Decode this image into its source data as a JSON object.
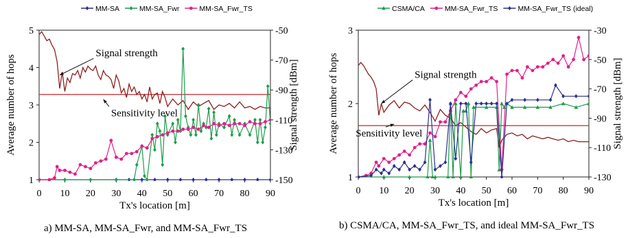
{
  "chart_data": [
    {
      "type": "line",
      "caption": "a) MM-SA, MM-SA_Fwr, and MM-SA_Fwr_TS",
      "xlabel": "Tx's location [m]",
      "ylabel": "Average number of hops",
      "y2label": "Signal strength [dBm]",
      "xlim": [
        0,
        90
      ],
      "ylim": [
        1,
        5
      ],
      "y2lim": [
        -150,
        -50
      ],
      "x_ticks": [
        "0",
        "10",
        "20",
        "30",
        "40",
        "50",
        "60",
        "70",
        "80",
        "90"
      ],
      "y_ticks": [
        "1",
        "2",
        "3",
        "4",
        "5"
      ],
      "y2_ticks": [
        "-50",
        "-70",
        "-90",
        "-110",
        "-130",
        "-150"
      ],
      "series": [
        {
          "name": "MM-SA",
          "axis": "left",
          "color": "#2b2f8f",
          "marker": "diamond",
          "x": [
            0,
            30,
            35,
            40,
            45,
            50,
            55,
            60,
            65,
            70,
            75,
            80,
            85,
            90
          ],
          "y": [
            1,
            1,
            1,
            1,
            1,
            1,
            1,
            1,
            1,
            1,
            1,
            1,
            1,
            1
          ]
        },
        {
          "name": "MM-SA_Fwr",
          "axis": "left",
          "color": "#1f9c4a",
          "marker": "diamond",
          "x": [
            0,
            10,
            20,
            30,
            37,
            38,
            40,
            41,
            42,
            44,
            45,
            46,
            47,
            48,
            49,
            50,
            52,
            53,
            54,
            55,
            56,
            57,
            58,
            59,
            60,
            61,
            62,
            63,
            64,
            65,
            66,
            67,
            68,
            69,
            70,
            72,
            74,
            75,
            76,
            78,
            80,
            82,
            84,
            85,
            86,
            87,
            88,
            89,
            90
          ],
          "y": [
            1,
            1,
            1,
            1,
            1,
            1.4,
            1.9,
            1.1,
            1,
            2.2,
            1.8,
            2.5,
            2.3,
            1.4,
            2.7,
            2.2,
            2.5,
            2.0,
            2.6,
            2.3,
            4.5,
            2.7,
            2.4,
            2.2,
            2.6,
            2.2,
            3.0,
            2.3,
            2.5,
            2.4,
            2.9,
            2.1,
            2.8,
            2.2,
            2.5,
            2.4,
            2.7,
            2.2,
            2.6,
            2.2,
            2.5,
            2.2,
            2.6,
            2.0,
            2.6,
            2.0,
            2.4,
            3.5,
            2.5
          ]
        },
        {
          "name": "MM-SA_Fwr_TS",
          "axis": "left",
          "color": "#e0208a",
          "marker": "circle",
          "x": [
            0,
            4,
            6,
            7,
            8,
            10,
            12,
            14,
            16,
            18,
            20,
            22,
            24,
            26,
            28,
            30,
            32,
            34,
            36,
            38,
            40,
            42,
            44,
            46,
            48,
            50,
            52,
            54,
            56,
            58,
            60,
            62,
            64,
            66,
            68,
            70,
            72,
            74,
            76,
            78,
            80,
            82,
            84,
            86,
            88,
            90
          ],
          "y": [
            1,
            1,
            1.05,
            1.35,
            1.25,
            1.25,
            1.2,
            1.15,
            1.4,
            1.35,
            1.3,
            1.45,
            1.5,
            1.55,
            2.05,
            1.6,
            1.55,
            1.7,
            1.7,
            1.75,
            1.9,
            1.85,
            2.1,
            2.15,
            2.2,
            2.25,
            2.3,
            2.3,
            2.35,
            2.35,
            2.4,
            2.35,
            2.45,
            2.4,
            2.5,
            2.45,
            2.5,
            2.45,
            2.5,
            2.5,
            2.45,
            2.55,
            2.5,
            2.5,
            2.55,
            2.6
          ]
        },
        {
          "name": "Signal strength",
          "axis": "right",
          "color": "#8b1f1f",
          "marker": "none",
          "x": [
            0,
            1,
            2,
            3,
            4,
            5,
            6,
            7,
            8,
            9,
            10,
            11,
            12,
            13,
            14,
            15,
            16,
            17,
            18,
            19,
            20,
            21,
            22,
            23,
            24,
            25,
            26,
            27,
            28,
            29,
            30,
            31,
            32,
            33,
            34,
            35,
            36,
            37,
            38,
            39,
            40,
            41,
            42,
            43,
            44,
            45,
            46,
            47,
            48,
            49,
            50,
            52,
            54,
            56,
            58,
            60,
            62,
            64,
            66,
            68,
            70,
            72,
            74,
            76,
            78,
            80,
            82,
            84,
            86,
            88,
            90
          ],
          "y": [
            -53,
            -51,
            -54,
            -57,
            -56,
            -60,
            -63,
            -71,
            -89,
            -78,
            -91,
            -82,
            -85,
            -79,
            -80,
            -77,
            -82,
            -75,
            -78,
            -74,
            -76,
            -77,
            -74,
            -80,
            -83,
            -77,
            -80,
            -81,
            -83,
            -89,
            -80,
            -84,
            -92,
            -89,
            -95,
            -86,
            -91,
            -88,
            -93,
            -91,
            -96,
            -93,
            -98,
            -88,
            -96,
            -93,
            -92,
            -99,
            -91,
            -95,
            -101,
            -96,
            -100,
            -97,
            -103,
            -98,
            -101,
            -99,
            -97,
            -103,
            -100,
            -101,
            -99,
            -102,
            -98,
            -102,
            -101,
            -103,
            -101,
            -102,
            -102
          ]
        }
      ],
      "annotations": [
        {
          "text": "Signal strength",
          "axis": "left",
          "at": [
            22,
            4.3
          ],
          "arrow_to": [
            8,
            3.8
          ]
        },
        {
          "text": "Sensitivity level",
          "axis": "left",
          "at": [
            28,
            2.7
          ],
          "arrow_to": [
            25,
            3.15
          ]
        }
      ],
      "hlines": [
        {
          "axis": "right",
          "value": -93,
          "color": "#c0282d"
        }
      ]
    },
    {
      "type": "line",
      "caption": "b) CSMA/CA, MM-SA_Fwr_TS, and ideal MM-SA_Fwr_TS",
      "xlabel": "Tx's location [m]",
      "ylabel": "Average number of hops",
      "y2label": "Signal strength [dBm]",
      "xlim": [
        0,
        90
      ],
      "ylim": [
        1,
        3
      ],
      "y2lim": [
        -130,
        -30
      ],
      "x_ticks": [
        "0",
        "10",
        "20",
        "30",
        "40",
        "50",
        "60",
        "70",
        "80",
        "90"
      ],
      "y_ticks": [
        "1",
        "2",
        "3"
      ],
      "y2_ticks": [
        "-30",
        "-50",
        "-70",
        "-90",
        "-110",
        "-130"
      ],
      "series": [
        {
          "name": "CSMA/CA",
          "axis": "left",
          "color": "#1f9c4a",
          "marker": "triangle",
          "x": [
            0,
            10,
            20,
            27,
            28,
            29,
            30,
            35,
            36,
            37,
            38,
            40,
            41,
            42,
            43,
            44,
            45,
            50,
            54,
            55,
            56,
            57,
            58,
            60,
            65,
            70,
            75,
            80,
            85,
            90
          ],
          "y": [
            1,
            1,
            1,
            1,
            1.5,
            1,
            1,
            1,
            2.0,
            1,
            2.0,
            1,
            1.9,
            1.9,
            2.0,
            1,
            1.95,
            1.95,
            1.95,
            1.1,
            2.0,
            1.95,
            2.0,
            1.95,
            1.95,
            1.95,
            1.95,
            2.0,
            1.95,
            2.0
          ]
        },
        {
          "name": "MM-SA_Fwr_TS",
          "axis": "left",
          "color": "#e0208a",
          "marker": "circle",
          "x": [
            0,
            3,
            5,
            7,
            8,
            10,
            12,
            14,
            16,
            18,
            20,
            22,
            24,
            26,
            28,
            30,
            32,
            34,
            36,
            38,
            40,
            42,
            44,
            46,
            48,
            50,
            52,
            54,
            56,
            58,
            60,
            62,
            64,
            66,
            68,
            70,
            72,
            74,
            76,
            78,
            80,
            82,
            84,
            86,
            88,
            90
          ],
          "y": [
            1,
            1.02,
            1.05,
            1.2,
            1.15,
            1.25,
            1.2,
            1.25,
            1.3,
            1.35,
            1.3,
            1.4,
            1.45,
            1.45,
            1.6,
            1.55,
            1.75,
            1.75,
            1.9,
            2.05,
            2.15,
            2.1,
            2.2,
            2.25,
            2.3,
            2.3,
            2.35,
            2.3,
            1.1,
            2.4,
            2.45,
            2.45,
            2.35,
            2.5,
            2.45,
            2.5,
            2.5,
            2.55,
            2.6,
            2.55,
            2.65,
            2.5,
            2.6,
            2.9,
            2.6,
            2.65
          ]
        },
        {
          "name": "MM-SA_Fwr_TS (ideal)",
          "axis": "left",
          "color": "#2b2f8f",
          "marker": "diamond",
          "x": [
            0,
            5,
            7,
            9,
            10,
            12,
            14,
            16,
            18,
            20,
            22,
            24,
            26,
            28,
            30,
            32,
            34,
            36,
            38,
            40,
            42,
            44,
            46,
            48,
            50,
            52,
            54,
            56,
            58,
            60,
            65,
            70,
            75,
            77,
            80,
            85,
            90
          ],
          "y": [
            1,
            1.02,
            1.1,
            1.05,
            1.1,
            1.05,
            1.15,
            1.1,
            1.2,
            1.1,
            1.15,
            1.1,
            1.2,
            2.05,
            1.1,
            1.15,
            1.2,
            2.0,
            1.25,
            2.0,
            2.0,
            1.2,
            2.0,
            2.0,
            2.0,
            2.0,
            2.0,
            1.0,
            2.0,
            2.05,
            2.05,
            2.05,
            2.05,
            2.25,
            2.1,
            2.1,
            2.1
          ]
        },
        {
          "name": "Signal strength",
          "axis": "right",
          "color": "#8b1f1f",
          "marker": "none",
          "x": [
            0,
            1,
            2,
            3,
            4,
            5,
            6,
            7,
            8,
            9,
            10,
            12,
            14,
            16,
            18,
            20,
            22,
            24,
            26,
            28,
            30,
            32,
            34,
            36,
            38,
            40,
            42,
            44,
            46,
            48,
            50,
            52,
            54,
            55,
            56,
            57,
            58,
            60,
            62,
            64,
            66,
            68,
            70,
            72,
            74,
            76,
            78,
            80,
            82,
            84,
            86,
            88,
            90
          ],
          "y": [
            -54,
            -52,
            -54,
            -57,
            -60,
            -62,
            -65,
            -70,
            -88,
            -80,
            -86,
            -81,
            -78,
            -83,
            -79,
            -80,
            -83,
            -85,
            -81,
            -86,
            -92,
            -84,
            -88,
            -90,
            -95,
            -93,
            -96,
            -99,
            -101,
            -97,
            -100,
            -98,
            -97,
            -110,
            -105,
            -103,
            -101,
            -100,
            -102,
            -101,
            -104,
            -102,
            -103,
            -104,
            -103,
            -104,
            -105,
            -104,
            -106,
            -105,
            -106,
            -106,
            -106
          ]
        }
      ],
      "annotations": [
        {
          "text": "Signal strength",
          "axis": "left",
          "at": [
            22,
            2.35
          ],
          "arrow_to": [
            9,
            2.0
          ]
        },
        {
          "text": "Sensitivity level",
          "axis": "left",
          "at": [
            -1,
            1.55
          ],
          "arrow_to": [
            14,
            1.72
          ]
        }
      ],
      "hlines": [
        {
          "axis": "right",
          "value": -95,
          "color": "#c0282d"
        }
      ]
    }
  ]
}
